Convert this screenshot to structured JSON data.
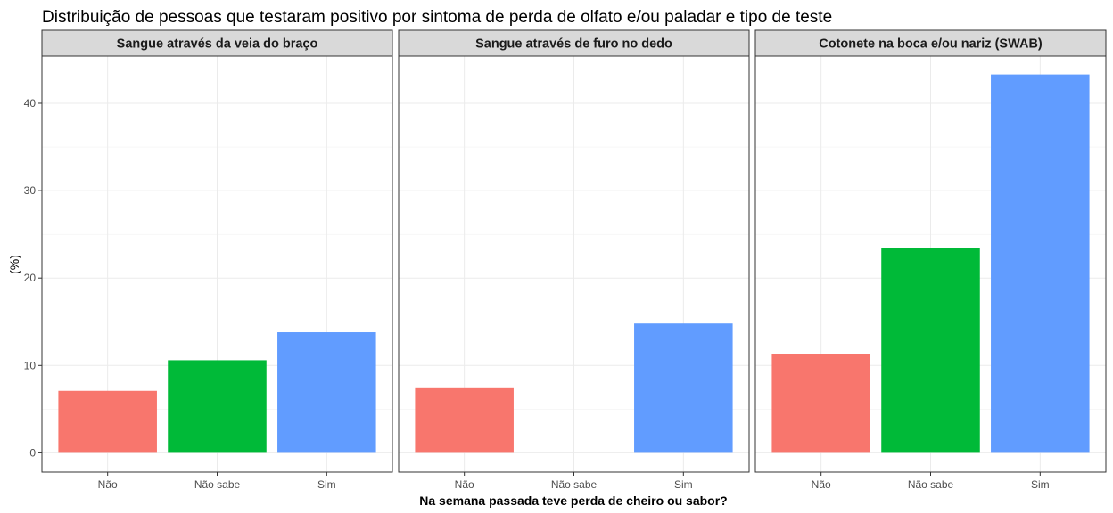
{
  "chart_data": {
    "type": "bar",
    "title": "Distribuição de pessoas que testaram positivo por sintoma de perda de olfato e/ou paladar e tipo de teste",
    "xlabel": "Na semana passada teve perda de cheiro ou sabor?",
    "ylabel": "(%)",
    "categories": [
      "Não",
      "Não sabe",
      "Sim"
    ],
    "category_colors": [
      "#F8766D",
      "#00BA38",
      "#619CFF"
    ],
    "ylim": [
      -2.2,
      45.4
    ],
    "yticks": [
      0,
      10,
      20,
      30,
      40
    ],
    "grid": true,
    "legend": "none",
    "facets": [
      {
        "name": "Sangue através da veia do braço",
        "values": [
          7.1,
          10.6,
          13.8
        ]
      },
      {
        "name": "Sangue através de furo no dedo",
        "values": [
          7.4,
          0,
          14.8
        ]
      },
      {
        "name": "Cotonete na boca e/ou nariz (SWAB)",
        "values": [
          11.3,
          23.4,
          43.3
        ]
      }
    ]
  }
}
